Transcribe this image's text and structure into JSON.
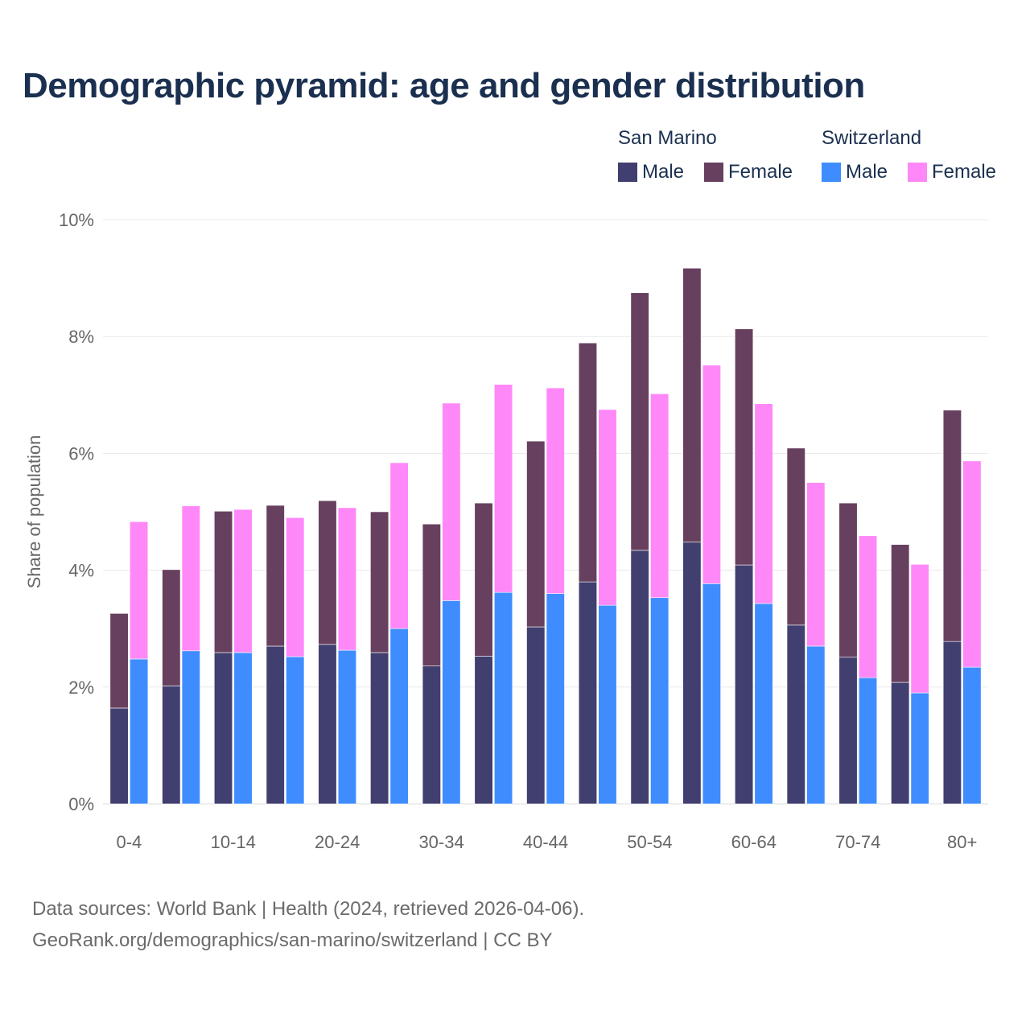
{
  "title": "Demographic pyramid: age and gender distribution",
  "legend": {
    "groups": [
      {
        "name": "San Marino",
        "items": [
          {
            "label": "Male",
            "color": "#413f6f"
          },
          {
            "label": "Female",
            "color": "#67405f"
          }
        ]
      },
      {
        "name": "Switzerland",
        "items": [
          {
            "label": "Male",
            "color": "#3f8cff"
          },
          {
            "label": "Female",
            "color": "#ff88f8"
          }
        ]
      }
    ]
  },
  "footer": {
    "line1": "Data sources: World Bank | Health (2024, retrieved 2026-04-06).",
    "line2": "GeoRank.org/demographics/san-marino/switzerland | CC BY"
  },
  "chart_data": {
    "type": "bar",
    "stacked": true,
    "title": "Demographic pyramid: age and gender distribution",
    "xlabel": "",
    "ylabel": "Share of population",
    "ylim": [
      0,
      10
    ],
    "yticks": [
      "0%",
      "2%",
      "4%",
      "6%",
      "8%",
      "10%"
    ],
    "ytick_values": [
      0,
      2,
      4,
      6,
      8,
      10
    ],
    "grid": true,
    "legend_position": "top-right",
    "categories": [
      "0-4",
      "5-9",
      "10-14",
      "15-19",
      "20-24",
      "25-29",
      "30-34",
      "35-39",
      "40-44",
      "45-49",
      "50-54",
      "55-59",
      "60-64",
      "65-69",
      "70-74",
      "75-79",
      "80+"
    ],
    "shown_tick_labels": [
      "0-4",
      "10-14",
      "20-24",
      "30-34",
      "40-44",
      "50-54",
      "60-64",
      "70-74",
      "80+"
    ],
    "series": [
      {
        "name": "San Marino Male",
        "stack": "San Marino",
        "color": "#413f6f",
        "values": [
          1.64,
          2.02,
          2.59,
          2.7,
          2.73,
          2.59,
          2.36,
          2.53,
          3.03,
          3.8,
          4.34,
          4.48,
          4.09,
          3.06,
          2.51,
          2.08,
          2.78
        ]
      },
      {
        "name": "San Marino Female",
        "stack": "San Marino",
        "color": "#67405f",
        "values": [
          1.62,
          1.99,
          2.42,
          2.41,
          2.46,
          2.41,
          2.43,
          2.62,
          3.18,
          4.09,
          4.41,
          4.69,
          4.04,
          3.03,
          2.64,
          2.36,
          3.96
        ]
      },
      {
        "name": "Switzerland Male",
        "stack": "Switzerland",
        "color": "#3f8cff",
        "values": [
          2.48,
          2.62,
          2.59,
          2.52,
          2.63,
          3.0,
          3.48,
          3.62,
          3.6,
          3.4,
          3.53,
          3.77,
          3.43,
          2.7,
          2.16,
          1.9,
          2.34
        ]
      },
      {
        "name": "Switzerland Female",
        "stack": "Switzerland",
        "color": "#ff88f8",
        "values": [
          2.35,
          2.48,
          2.45,
          2.38,
          2.44,
          2.84,
          3.38,
          3.56,
          3.52,
          3.35,
          3.49,
          3.74,
          3.42,
          2.8,
          2.43,
          2.2,
          3.53
        ]
      }
    ]
  }
}
